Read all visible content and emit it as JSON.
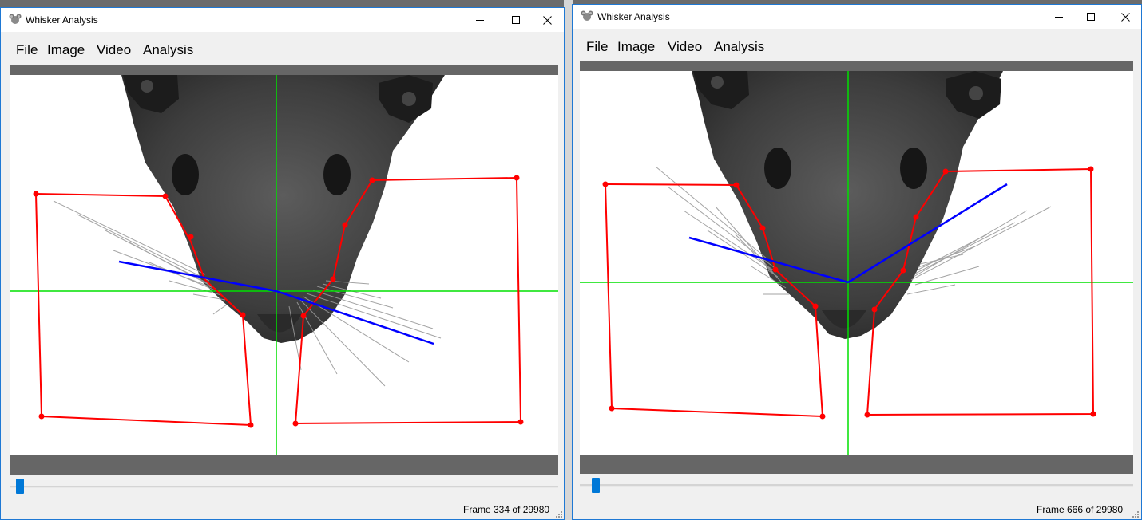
{
  "windows": [
    {
      "title": "Whisker Analysis",
      "menu": [
        "File",
        "Image",
        "Video",
        "Analysis"
      ],
      "status": "Frame 334 of 29980",
      "slider": {
        "position": 334,
        "max": 29980
      }
    },
    {
      "title": "Whisker Analysis",
      "menu": [
        "File",
        "Image",
        "Video",
        "Analysis"
      ],
      "status": "Frame 666 of 29980",
      "slider": {
        "position": 666,
        "max": 29980
      }
    }
  ],
  "icons": {
    "app": "mouse-app-icon",
    "minimize": "minimize-icon",
    "maximize": "maximize-icon",
    "close": "close-icon",
    "resize": "resize-grip-icon"
  },
  "colors": {
    "crosshair": "#00e000",
    "roi": "#ff0000",
    "whisker_angle": "#0000ff",
    "slider_thumb": "#0078d7",
    "image_bar": "#666666"
  }
}
